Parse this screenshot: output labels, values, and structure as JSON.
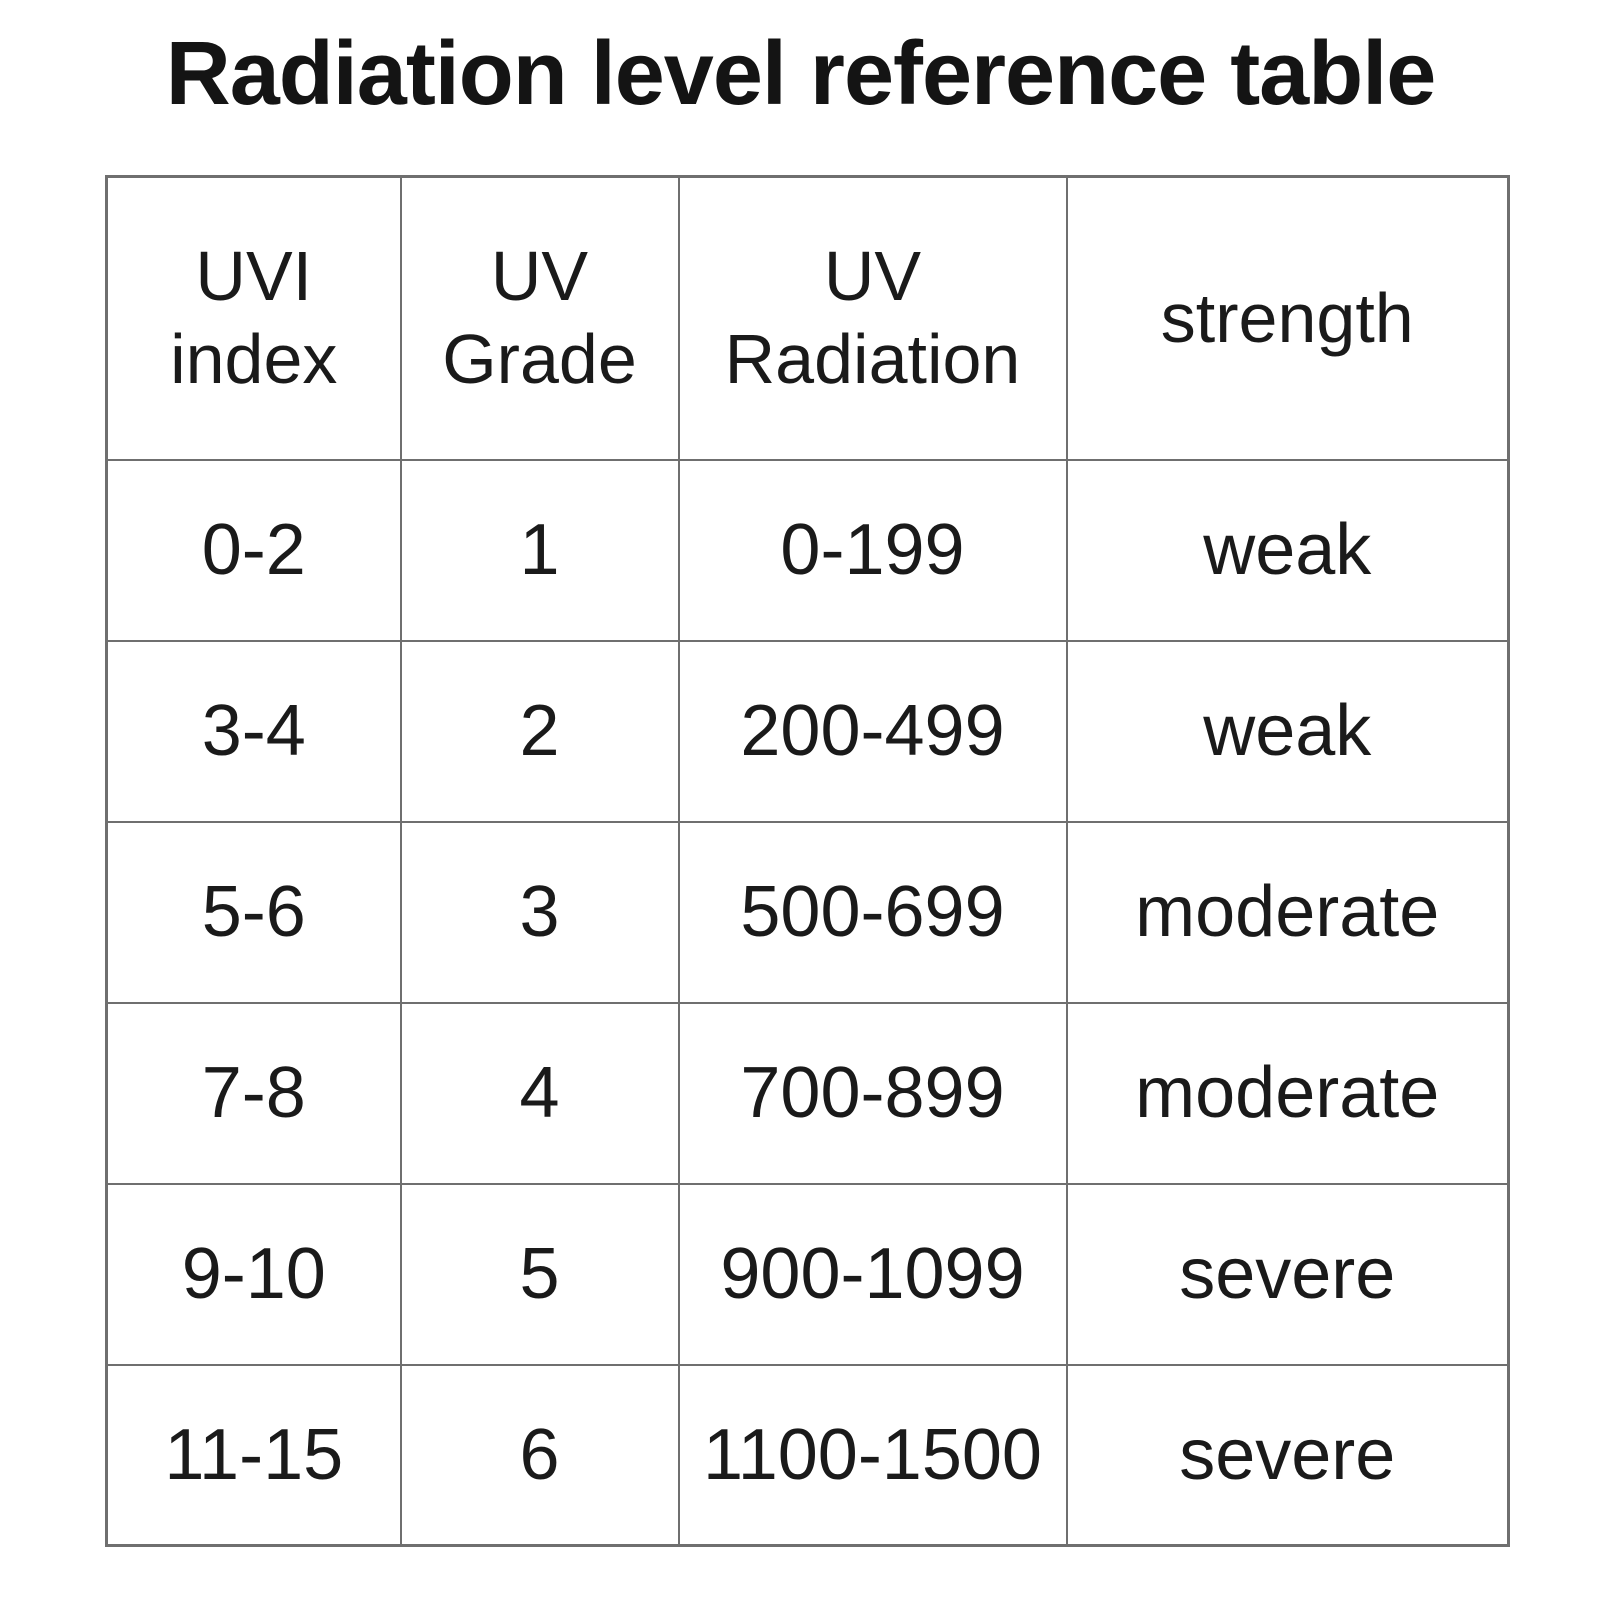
{
  "title": "Radiation level reference table",
  "colors": {
    "background": "#ffffff",
    "text": "#1a1a1a",
    "border": "#6f6f6f"
  },
  "table": {
    "headers": [
      "UVI\nindex",
      "UV\nGrade",
      "UV\nRadiation",
      "strength"
    ],
    "rows": [
      [
        "0-2",
        "1",
        "0-199",
        "weak"
      ],
      [
        "3-4",
        "2",
        "200-499",
        "weak"
      ],
      [
        "5-6",
        "3",
        "500-699",
        "moderate"
      ],
      [
        "7-8",
        "4",
        "700-899",
        "moderate"
      ],
      [
        "9-10",
        "5",
        "900-1099",
        "severe"
      ],
      [
        "11-15",
        "6",
        "1100-1500",
        "severe"
      ]
    ]
  }
}
